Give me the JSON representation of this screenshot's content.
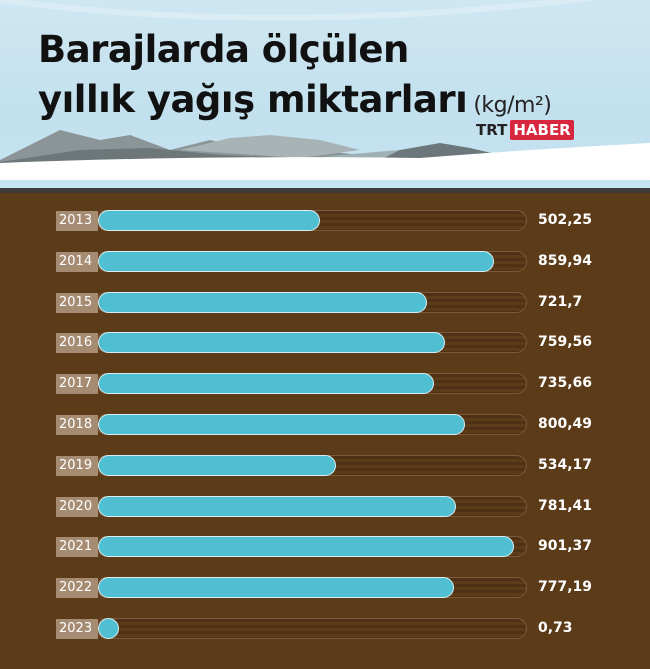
{
  "header": {
    "title_line1": "Barajlarda ölçülen",
    "title_line2": "yıllık yağış miktarları",
    "unit": "(kg/m²)",
    "logo_trt": "TRT",
    "logo_haber": "HABER"
  },
  "colors": {
    "bar": "#4fbfd1",
    "background": "#5c3b18",
    "year_label_bg": "#a58b72",
    "logo_red": "#d7263d"
  },
  "chart_data": {
    "type": "bar",
    "orientation": "horizontal",
    "title": "Barajlarda ölçülen yıllık yağış miktarları",
    "ylabel": "(kg/m²)",
    "categories": [
      "2013",
      "2014",
      "2015",
      "2016",
      "2017",
      "2018",
      "2019",
      "2020",
      "2021",
      "2022",
      "2023"
    ],
    "values": [
      502.25,
      859.94,
      721.7,
      759.56,
      735.66,
      800.49,
      534.17,
      781.41,
      901.37,
      777.19,
      0.73
    ],
    "value_labels": [
      "502,25",
      "859,94",
      "721,7",
      "759,56",
      "735,66",
      "800,49",
      "534,17",
      "781,41",
      "901,37",
      "777,19",
      "0,73"
    ]
  }
}
